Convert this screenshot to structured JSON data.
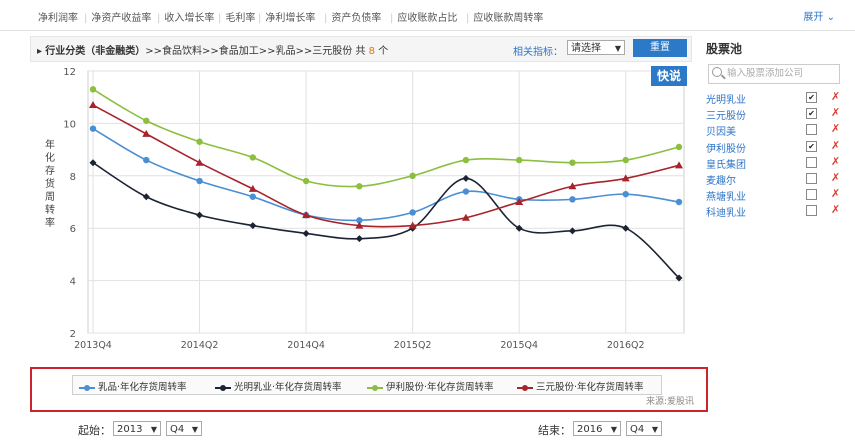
{
  "top_tabs": [
    "净利润率",
    "净资产收益率",
    "收入增长率",
    "毛利率",
    "净利增长率",
    "资产负债率",
    "应收账款占比",
    "应收账款周转率"
  ],
  "expand_label": "展开",
  "crumb": {
    "prefix": "行业分类（非金融类）",
    "path": ">>食品饮料>>食品加工>>乳品>>三元股份",
    "count_pre": "共",
    "count": "8",
    "count_post": "个"
  },
  "indicator": {
    "label": "相关指标：",
    "value": "请选择"
  },
  "reset_label": "重置",
  "kuaishuo_label": "快说",
  "chart_data": {
    "type": "line",
    "title": "",
    "xlabel": "",
    "ylabel": "年化存货周转率",
    "ylim": [
      2,
      12
    ],
    "yticks": [
      2,
      4,
      6,
      8,
      10,
      12
    ],
    "x": [
      "2013Q4",
      "2014Q1",
      "2014Q2",
      "2014Q3",
      "2014Q4",
      "2015Q1",
      "2015Q2",
      "2015Q3",
      "2015Q4",
      "2016Q1",
      "2016Q2",
      "2016Q3"
    ],
    "xtick_labels": [
      "2013Q4",
      "2014Q2",
      "2014Q4",
      "2015Q2",
      "2015Q4",
      "2016Q2"
    ],
    "grid": true,
    "legend_position": "bottom",
    "series": [
      {
        "name": "乳品·年化存货周转率",
        "color": "#4a8ed3",
        "marker": "circle",
        "values": [
          9.8,
          8.6,
          7.8,
          7.2,
          6.5,
          6.3,
          6.6,
          7.4,
          7.1,
          7.1,
          7.3,
          7.0
        ]
      },
      {
        "name": "光明乳业·年化存货周转率",
        "color": "#1c2333",
        "marker": "diamond",
        "values": [
          8.5,
          7.2,
          6.5,
          6.1,
          5.8,
          5.6,
          6.0,
          7.9,
          6.0,
          5.9,
          6.0,
          4.1
        ]
      },
      {
        "name": "伊利股份·年化存货周转率",
        "color": "#8cbf3f",
        "marker": "circle",
        "values": [
          11.3,
          10.1,
          9.3,
          8.7,
          7.8,
          7.6,
          8.0,
          8.6,
          8.6,
          8.5,
          8.6,
          9.1
        ]
      },
      {
        "name": "三元股份·年化存货周转率",
        "color": "#a8242c",
        "marker": "triangle",
        "values": [
          10.7,
          9.6,
          8.5,
          7.5,
          6.5,
          6.1,
          6.1,
          6.4,
          7.0,
          7.6,
          7.9,
          8.4
        ]
      }
    ]
  },
  "source_label": "来源:爱股讯",
  "range": {
    "start_label": "起始：",
    "start_year": "2013",
    "start_q": "Q4",
    "end_label": "结束：",
    "end_year": "2016",
    "end_q": "Q4"
  },
  "pool": {
    "title": "股票池",
    "search_placeholder": "输入股票添加公司",
    "items": [
      {
        "name": "光明乳业",
        "checked": true
      },
      {
        "name": "三元股份",
        "checked": true
      },
      {
        "name": "贝因美",
        "checked": false
      },
      {
        "name": "伊利股份",
        "checked": true
      },
      {
        "name": "皇氏集团",
        "checked": false
      },
      {
        "name": "麦趣尔",
        "checked": false
      },
      {
        "name": "燕塘乳业",
        "checked": false
      },
      {
        "name": "科迪乳业",
        "checked": false
      }
    ]
  }
}
